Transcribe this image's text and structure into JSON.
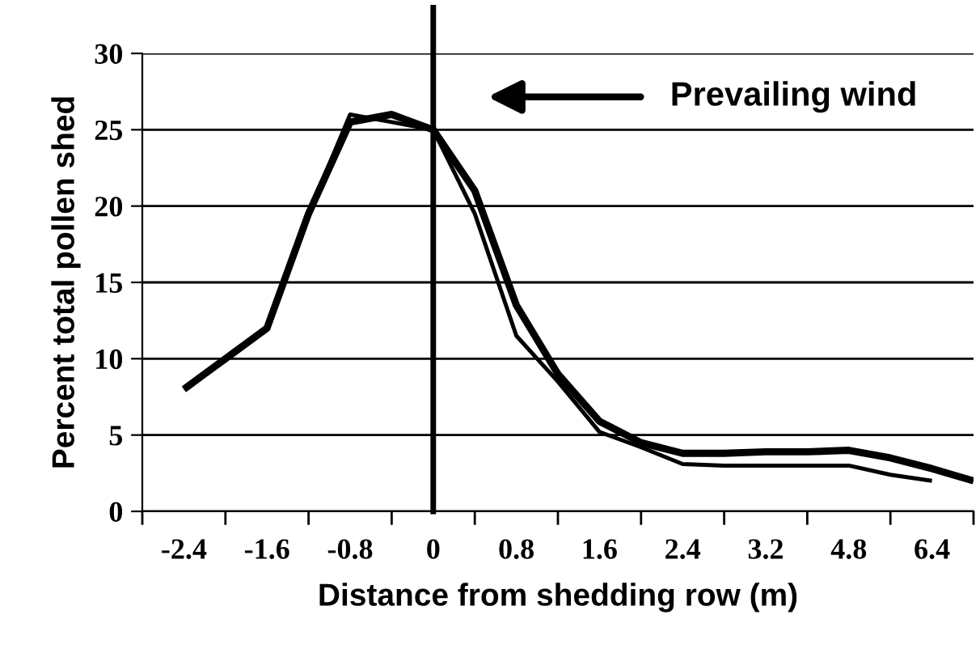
{
  "chart_data": {
    "type": "line",
    "xlabel": "Distance from shedding row (m)",
    "ylabel": "Percent total pollen shed",
    "categories": [
      "-2.4",
      null,
      "-1.6",
      null,
      "-0.8",
      null,
      "0",
      null,
      "0.8",
      null,
      "1.6",
      null,
      "2.4",
      null,
      "3.2",
      null,
      "4.8",
      null,
      "6.4",
      null
    ],
    "series": [
      {
        "color": "#000000",
        "values": [
          8,
          10,
          12,
          19.5,
          25.5,
          26,
          25,
          21,
          13.5,
          9,
          5.9,
          4.5,
          3.8,
          3.8,
          3.9,
          3.9,
          4.0,
          3.5,
          2.8,
          2
        ]
      },
      {
        "color": "#000000",
        "values": [
          8,
          10,
          12,
          19.5,
          26,
          25.5,
          25,
          19.5,
          11.5,
          8.5,
          5.2,
          4.2,
          3.1,
          3.0,
          3.0,
          3.0,
          3.0,
          2.4,
          2,
          null
        ]
      }
    ],
    "ylim": [
      0,
      30
    ],
    "yticks": [
      0,
      5,
      10,
      15,
      20,
      25,
      30
    ],
    "grid": "y",
    "marker": "none",
    "line_style": "solid",
    "ref_lines": [
      {
        "axis": "x",
        "value": "0",
        "color": "#000000"
      }
    ],
    "annotations": [
      "Prevailing wind"
    ]
  }
}
